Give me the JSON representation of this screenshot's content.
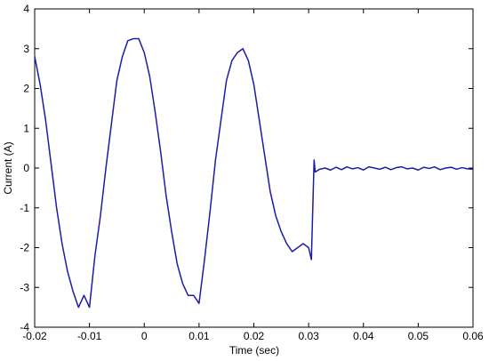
{
  "chart_data": {
    "type": "line",
    "xlabel": "Time (sec)",
    "ylabel": "Current (A)",
    "color": "#1c1ca8",
    "x": [
      -0.02,
      -0.019,
      -0.018,
      -0.017,
      -0.016,
      -0.015,
      -0.014,
      -0.013,
      -0.012,
      -0.011,
      -0.01,
      -0.009,
      -0.008,
      -0.007,
      -0.006,
      -0.005,
      -0.004,
      -0.003,
      -0.002,
      -0.001,
      0.0,
      0.001,
      0.002,
      0.003,
      0.004,
      0.005,
      0.006,
      0.007,
      0.008,
      0.009,
      0.01,
      0.011,
      0.012,
      0.013,
      0.014,
      0.015,
      0.016,
      0.017,
      0.018,
      0.019,
      0.02,
      0.021,
      0.022,
      0.023,
      0.024,
      0.025,
      0.026,
      0.027,
      0.028,
      0.029,
      0.03,
      0.0305,
      0.031,
      0.0312,
      0.032,
      0.033,
      0.034,
      0.035,
      0.036,
      0.037,
      0.038,
      0.039,
      0.04,
      0.041,
      0.042,
      0.043,
      0.044,
      0.045,
      0.046,
      0.047,
      0.048,
      0.049,
      0.05,
      0.051,
      0.052,
      0.053,
      0.054,
      0.055,
      0.056,
      0.057,
      0.058,
      0.059,
      0.06
    ],
    "values": [
      2.8,
      2.1,
      1.2,
      0.1,
      -1.0,
      -1.9,
      -2.6,
      -3.1,
      -3.5,
      -3.2,
      -3.5,
      -2.2,
      -1.2,
      0.0,
      1.1,
      2.2,
      2.8,
      3.2,
      3.25,
      3.25,
      2.9,
      2.3,
      1.4,
      0.4,
      -0.7,
      -1.6,
      -2.4,
      -2.9,
      -3.2,
      -3.2,
      -3.4,
      -2.3,
      -1.1,
      0.2,
      1.2,
      2.2,
      2.7,
      2.9,
      3.0,
      2.7,
      2.1,
      1.2,
      0.3,
      -0.6,
      -1.2,
      -1.6,
      -1.9,
      -2.1,
      -2.0,
      -1.9,
      -2.0,
      -2.3,
      0.2,
      -0.1,
      -0.03,
      0.0,
      -0.05,
      0.02,
      -0.04,
      0.03,
      -0.02,
      0.01,
      -0.05,
      0.03,
      0.0,
      -0.03,
      0.02,
      -0.04,
      0.01,
      0.03,
      -0.02,
      0.0,
      -0.05,
      0.02,
      -0.01,
      0.03,
      -0.04,
      0.0,
      0.02,
      -0.03,
      0.01,
      -0.02,
      -0.03
    ],
    "xlim": [
      -0.02,
      0.06
    ],
    "xticks": [
      -0.02,
      -0.01,
      0,
      0.01,
      0.02,
      0.03,
      0.04,
      0.05,
      0.06
    ],
    "ylim": [
      -4,
      4
    ],
    "yticks": [
      -4,
      -3,
      -2,
      -1,
      0,
      1,
      2,
      3,
      4
    ],
    "grid": false
  }
}
